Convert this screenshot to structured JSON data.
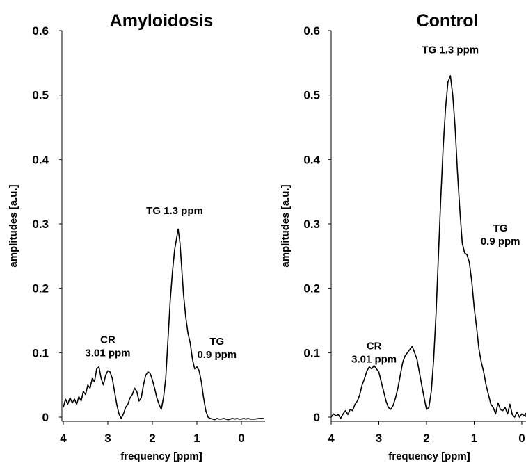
{
  "chart_data": [
    {
      "type": "line",
      "title": "Amyloidosis",
      "xlabel": "frequency [ppm]",
      "ylabel": "amplitudes [a.u.]",
      "x_reversed": true,
      "xlim": [
        4,
        -0.5
      ],
      "ylim": [
        0,
        0.6
      ],
      "x_ticks": [
        "4",
        "3",
        "2",
        "1",
        "0"
      ],
      "y_ticks": [
        "0",
        "0.1",
        "0.2",
        "0.3",
        "0.4",
        "0.5",
        "0.6"
      ],
      "grid": false,
      "annotations": [
        {
          "lines": [
            "TG 1.3 ppm"
          ],
          "x": 1.5,
          "y": 0.315
        },
        {
          "lines": [
            "CR",
            "3.01 ppm"
          ],
          "x": 3.0,
          "y": 0.115
        },
        {
          "lines": [
            "TG",
            "0.9 ppm"
          ],
          "x": 0.55,
          "y": 0.112
        }
      ],
      "series": [
        {
          "x": [
            4.0,
            3.95,
            3.9,
            3.85,
            3.8,
            3.75,
            3.7,
            3.65,
            3.6,
            3.55,
            3.5,
            3.45,
            3.4,
            3.35,
            3.3,
            3.25,
            3.2,
            3.15,
            3.1,
            3.05,
            3.0,
            2.95,
            2.9,
            2.85,
            2.8,
            2.75,
            2.7,
            2.65,
            2.6,
            2.55,
            2.5,
            2.45,
            2.4,
            2.35,
            2.3,
            2.25,
            2.2,
            2.15,
            2.1,
            2.05,
            2.0,
            1.95,
            1.9,
            1.85,
            1.8,
            1.75,
            1.7,
            1.65,
            1.6,
            1.55,
            1.5,
            1.45,
            1.42,
            1.38,
            1.35,
            1.3,
            1.25,
            1.2,
            1.15,
            1.1,
            1.05,
            1.0,
            0.95,
            0.9,
            0.85,
            0.8,
            0.75,
            0.7,
            0.6,
            0.55,
            0.5,
            0.45,
            0.4,
            0.3,
            0.25,
            0.2,
            0.15,
            0.1,
            0.05,
            0.0,
            -0.05,
            -0.1,
            -0.15,
            -0.2,
            -0.3,
            -0.4,
            -0.5
          ],
          "y": [
            0.015,
            0.028,
            0.02,
            0.03,
            0.022,
            0.028,
            0.02,
            0.032,
            0.025,
            0.04,
            0.035,
            0.05,
            0.045,
            0.06,
            0.055,
            0.075,
            0.078,
            0.06,
            0.05,
            0.065,
            0.072,
            0.07,
            0.06,
            0.04,
            0.02,
            0.005,
            -0.002,
            0.005,
            0.015,
            0.02,
            0.03,
            0.035,
            0.045,
            0.04,
            0.025,
            0.03,
            0.05,
            0.065,
            0.07,
            0.068,
            0.058,
            0.045,
            0.03,
            0.02,
            0.012,
            0.03,
            0.06,
            0.12,
            0.18,
            0.225,
            0.26,
            0.28,
            0.292,
            0.27,
            0.24,
            0.19,
            0.155,
            0.13,
            0.115,
            0.09,
            0.075,
            0.078,
            0.072,
            0.055,
            0.03,
            0.01,
            0.0,
            -0.002,
            -0.004,
            -0.002,
            -0.003,
            -0.003,
            -0.002,
            -0.004,
            -0.003,
            -0.002,
            -0.003,
            -0.002,
            -0.003,
            -0.003,
            -0.002,
            -0.003,
            -0.002,
            -0.003,
            -0.003,
            -0.002,
            -0.002
          ]
        }
      ]
    },
    {
      "type": "line",
      "title": "Control",
      "xlabel": "frequency [ppm]",
      "ylabel": "amplitudes [a.u.]",
      "x_reversed": true,
      "xlim": [
        4,
        -0.4
      ],
      "ylim": [
        0,
        0.6
      ],
      "x_ticks": [
        "4",
        "3",
        "2",
        "1",
        "0"
      ],
      "y_ticks": [
        "0",
        "0.1",
        "0.2",
        "0.3",
        "0.4",
        "0.5",
        "0.6"
      ],
      "grid": false,
      "annotations": [
        {
          "lines": [
            "TG 1.3 ppm"
          ],
          "x": 1.5,
          "y": 0.565
        },
        {
          "lines": [
            "TG",
            "0.9 ppm"
          ],
          "x": 0.45,
          "y": 0.288
        },
        {
          "lines": [
            "CR",
            "3.01 ppm"
          ],
          "x": 3.1,
          "y": 0.105
        }
      ],
      "series": [
        {
          "x": [
            4.0,
            3.95,
            3.9,
            3.85,
            3.8,
            3.75,
            3.7,
            3.65,
            3.6,
            3.55,
            3.5,
            3.45,
            3.4,
            3.35,
            3.3,
            3.25,
            3.2,
            3.15,
            3.1,
            3.05,
            3.0,
            2.95,
            2.9,
            2.85,
            2.8,
            2.75,
            2.7,
            2.65,
            2.6,
            2.55,
            2.5,
            2.45,
            2.4,
            2.35,
            2.3,
            2.25,
            2.2,
            2.15,
            2.1,
            2.05,
            2.0,
            1.95,
            1.9,
            1.85,
            1.8,
            1.75,
            1.7,
            1.65,
            1.6,
            1.55,
            1.5,
            1.45,
            1.4,
            1.35,
            1.3,
            1.25,
            1.2,
            1.15,
            1.1,
            1.05,
            1.0,
            0.95,
            0.9,
            0.85,
            0.8,
            0.75,
            0.7,
            0.65,
            0.6,
            0.55,
            0.5,
            0.45,
            0.4,
            0.35,
            0.3,
            0.25,
            0.2,
            0.15,
            0.1,
            0.05,
            0.0,
            -0.05,
            -0.1,
            -0.15,
            -0.2
          ],
          "y": [
            0.0,
            0.005,
            0.002,
            0.004,
            -0.002,
            0.005,
            0.01,
            0.004,
            0.012,
            0.01,
            0.02,
            0.025,
            0.035,
            0.05,
            0.06,
            0.072,
            0.078,
            0.075,
            0.08,
            0.075,
            0.07,
            0.055,
            0.04,
            0.025,
            0.015,
            0.012,
            0.018,
            0.03,
            0.045,
            0.065,
            0.085,
            0.095,
            0.1,
            0.105,
            0.11,
            0.1,
            0.09,
            0.07,
            0.05,
            0.03,
            0.012,
            0.015,
            0.04,
            0.09,
            0.16,
            0.25,
            0.34,
            0.42,
            0.48,
            0.52,
            0.53,
            0.5,
            0.45,
            0.38,
            0.32,
            0.27,
            0.255,
            0.252,
            0.24,
            0.21,
            0.17,
            0.14,
            0.105,
            0.085,
            0.07,
            0.05,
            0.035,
            0.02,
            0.015,
            0.005,
            0.022,
            0.012,
            0.01,
            0.015,
            0.005,
            0.02,
            0.004,
            0.0,
            0.008,
            0.0,
            0.005,
            0.002,
            0.006,
            0.001,
            0.004
          ]
        }
      ]
    }
  ]
}
